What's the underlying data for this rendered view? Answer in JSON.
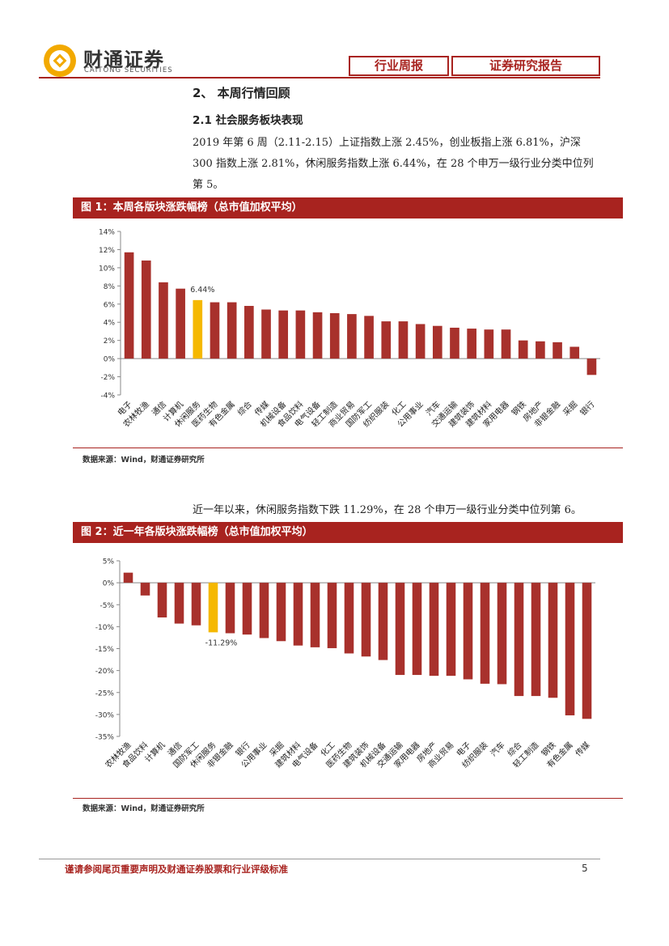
{
  "logo": {
    "cn": "财通证券",
    "en": "CAITONG SECURITIES"
  },
  "header": {
    "tag1": "行业周报",
    "tag2": "证券研究报告"
  },
  "section": {
    "title": "2、 本周行情回顾",
    "sub_title": "2.1  社会服务板块表现"
  },
  "paragraph1": "2019 年第 6 周（2.11-2.15）上证指数上涨 2.45%，创业板指上涨 6.81%，沪深 300 指数上涨 2.81%，休闲服务指数上涨 6.44%，在 28 个申万一级行业分类中位列第 5。",
  "figure1": {
    "title": "图 1：本周各版块涨跌幅榜（总市值加权平均）",
    "source": "数据来源：Wind，财通证券研究所"
  },
  "paragraph2": "近一年以来，休闲服务指数下跌 11.29%，在 28 个申万一级行业分类中位列第 6。",
  "figure2": {
    "title": "图 2：近一年各版块涨跌幅榜（总市值加权平均）",
    "source": "数据来源：Wind，财通证券研究所"
  },
  "footer": {
    "disclaimer": "谨请参阅尾页重要声明及财通证券股票和行业评级标准",
    "page": "5"
  },
  "colors": {
    "brand": "#a8231f",
    "bar": "#a8312c",
    "highlight": "#f5b800"
  },
  "chart_data": [
    {
      "type": "bar",
      "title": "本周各版块涨跌幅榜（总市值加权平均）",
      "categories": [
        "电子",
        "农林牧渔",
        "通信",
        "计算机",
        "休闲服务",
        "医药生物",
        "有色金属",
        "综合",
        "传媒",
        "机械设备",
        "食品饮料",
        "电气设备",
        "轻工制造",
        "商业贸易",
        "国防军工",
        "纺织服装",
        "化工",
        "公用事业",
        "汽车",
        "交通运输",
        "建筑装饰",
        "建筑材料",
        "家用电器",
        "钢铁",
        "房地产",
        "非银金融",
        "采掘",
        "银行"
      ],
      "values": [
        11.7,
        10.8,
        8.4,
        7.7,
        6.44,
        6.2,
        6.2,
        5.8,
        5.4,
        5.3,
        5.3,
        5.1,
        5.0,
        4.9,
        4.7,
        4.1,
        4.1,
        3.8,
        3.6,
        3.4,
        3.3,
        3.2,
        3.2,
        2.0,
        1.9,
        1.8,
        1.3,
        -1.8
      ],
      "highlight": "休闲服务",
      "annotation": "6.44%",
      "yticks": [
        "14%",
        "12%",
        "10%",
        "8%",
        "6%",
        "4%",
        "2%",
        "0%",
        "-2%",
        "-4%"
      ],
      "ylim": [
        -4,
        14
      ]
    },
    {
      "type": "bar",
      "title": "近一年各版块涨跌幅榜（总市值加权平均）",
      "categories": [
        "农林牧渔",
        "食品饮料",
        "计算机",
        "通信",
        "国防军工",
        "休闲服务",
        "非银金融",
        "银行",
        "公用事业",
        "采掘",
        "建筑材料",
        "电气设备",
        "化工",
        "医药生物",
        "建筑装饰",
        "机械设备",
        "交通运输",
        "家用电器",
        "房地产",
        "商业贸易",
        "电子",
        "纺织服装",
        "汽车",
        "综合",
        "轻工制造",
        "钢铁",
        "有色金属",
        "传媒"
      ],
      "values": [
        2.3,
        -2.9,
        -7.9,
        -9.3,
        -9.7,
        -11.29,
        -11.5,
        -11.8,
        -12.6,
        -13.3,
        -14.3,
        -14.7,
        -14.9,
        -16.1,
        -16.8,
        -17.6,
        -21.0,
        -21.0,
        -21.2,
        -21.2,
        -22.0,
        -23.0,
        -23.1,
        -25.8,
        -25.8,
        -26.2,
        -30.2,
        -31.0
      ],
      "highlight": "休闲服务",
      "annotation": "-11.29%",
      "yticks": [
        "5%",
        "0%",
        "-5%",
        "-10%",
        "-15%",
        "-20%",
        "-25%",
        "-30%",
        "-35%"
      ],
      "ylim": [
        -35,
        5
      ]
    }
  ]
}
